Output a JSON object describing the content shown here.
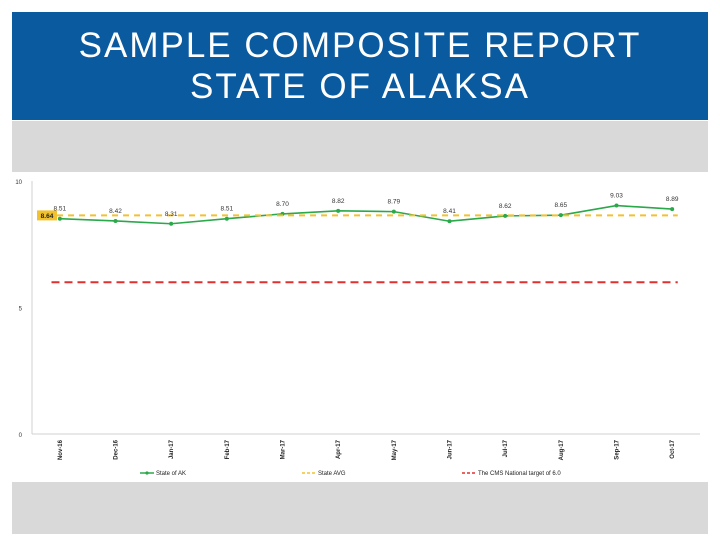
{
  "slide": {
    "title": "SAMPLE COMPOSITE REPORT\nSTATE OF ALAKSA"
  },
  "colors": {
    "title_bg": "#0a5aa0",
    "band_bg": "#d9d9d9",
    "state_line": "#2aa84a",
    "state_avg": "#f2c12e",
    "national_target": "#e03030"
  },
  "chart_data": {
    "type": "line",
    "categories": [
      "Nov-16",
      "Dec-16",
      "Jan-17",
      "Feb-17",
      "Mar-17",
      "Apr-17",
      "May-17",
      "Jun-17",
      "Jul-17",
      "Aug-17",
      "Sep-17",
      "Oct-17"
    ],
    "series": [
      {
        "name": "State of AK",
        "values": [
          8.51,
          8.42,
          8.31,
          8.51,
          8.7,
          8.82,
          8.79,
          8.41,
          8.62,
          8.65,
          9.03,
          8.89
        ],
        "color": "#2aa84a"
      },
      {
        "name": "State AVG",
        "values": [
          8.64,
          8.64,
          8.64,
          8.64,
          8.64,
          8.64,
          8.64,
          8.64,
          8.64,
          8.64,
          8.64,
          8.64
        ],
        "color": "#f2c12e",
        "style": "dashed",
        "label": "8.64"
      },
      {
        "name": "The CMS National target of 6.0",
        "values": [
          6.0,
          6.0,
          6.0,
          6.0,
          6.0,
          6.0,
          6.0,
          6.0,
          6.0,
          6.0,
          6.0,
          6.0
        ],
        "color": "#e03030",
        "style": "dashed"
      }
    ],
    "y_ticks": [
      "0",
      "5",
      "10"
    ],
    "ylim": [
      0,
      10
    ],
    "data_labels": [
      "8.51",
      "8.42",
      "8.31",
      "8.51",
      "8.70",
      "8.82",
      "8.79",
      "8.41",
      "8.62",
      "8.65",
      "9.03",
      "8.89"
    ],
    "grid": false,
    "legend_position": "bottom"
  }
}
